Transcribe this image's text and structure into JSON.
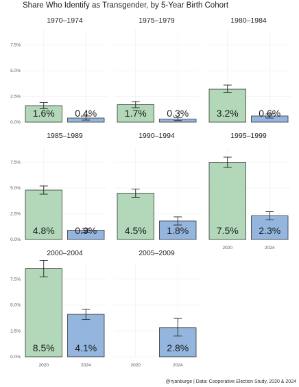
{
  "chart_data": {
    "type": "bar",
    "title": "Share Who Identify as Transgender, by 5-Year Birth Cohort",
    "caption": "@ryanburge | Data: Cooperative Election Study, 2020 & 2024",
    "ylim": [
      0,
      0.09
    ],
    "yticks": [
      "0.0%",
      "2.5%",
      "5.0%",
      "7.5%"
    ],
    "categories": [
      "2020",
      "2024"
    ],
    "colors": {
      "2020": "#b2d8b9",
      "2024": "#94b6de"
    },
    "grid": true,
    "facets": [
      {
        "name": "1970–1974",
        "bars": [
          {
            "x": "2020",
            "value": 0.016,
            "ci": [
              0.013,
              0.019
            ],
            "label": "1.6%"
          },
          {
            "x": "2024",
            "value": 0.004,
            "ci": [
              0.002,
              0.006
            ],
            "label": "0.4%"
          }
        ]
      },
      {
        "name": "1975–1979",
        "bars": [
          {
            "x": "2020",
            "value": 0.017,
            "ci": [
              0.014,
              0.02
            ],
            "label": "1.7%"
          },
          {
            "x": "2024",
            "value": 0.003,
            "ci": [
              0.0015,
              0.0045
            ],
            "label": "0.3%"
          }
        ]
      },
      {
        "name": "1980–1984",
        "bars": [
          {
            "x": "2020",
            "value": 0.032,
            "ci": [
              0.029,
              0.036
            ],
            "label": "3.2%"
          },
          {
            "x": "2024",
            "value": 0.006,
            "ci": [
              0.004,
              0.008
            ],
            "label": "0.6%"
          }
        ]
      },
      {
        "name": "1985–1989",
        "bars": [
          {
            "x": "2020",
            "value": 0.048,
            "ci": [
              0.044,
              0.052
            ],
            "label": "4.8%"
          },
          {
            "x": "2024",
            "value": 0.009,
            "ci": [
              0.007,
              0.011
            ],
            "label": "0.9%"
          }
        ]
      },
      {
        "name": "1990–1994",
        "bars": [
          {
            "x": "2020",
            "value": 0.045,
            "ci": [
              0.041,
              0.049
            ],
            "label": "4.5%"
          },
          {
            "x": "2024",
            "value": 0.018,
            "ci": [
              0.014,
              0.022
            ],
            "label": "1.8%"
          }
        ]
      },
      {
        "name": "1995–1999",
        "bars": [
          {
            "x": "2020",
            "value": 0.075,
            "ci": [
              0.07,
              0.08
            ],
            "label": "7.5%"
          },
          {
            "x": "2024",
            "value": 0.023,
            "ci": [
              0.019,
              0.027
            ],
            "label": "2.3%"
          }
        ]
      },
      {
        "name": "2000–2004",
        "bars": [
          {
            "x": "2020",
            "value": 0.085,
            "ci": [
              0.077,
              0.093
            ],
            "label": "8.5%"
          },
          {
            "x": "2024",
            "value": 0.041,
            "ci": [
              0.036,
              0.046
            ],
            "label": "4.1%"
          }
        ]
      },
      {
        "name": "2005–2009",
        "bars": [
          {
            "x": "2024",
            "value": 0.028,
            "ci": [
              0.02,
              0.037
            ],
            "label": "2.8%"
          }
        ]
      }
    ]
  }
}
